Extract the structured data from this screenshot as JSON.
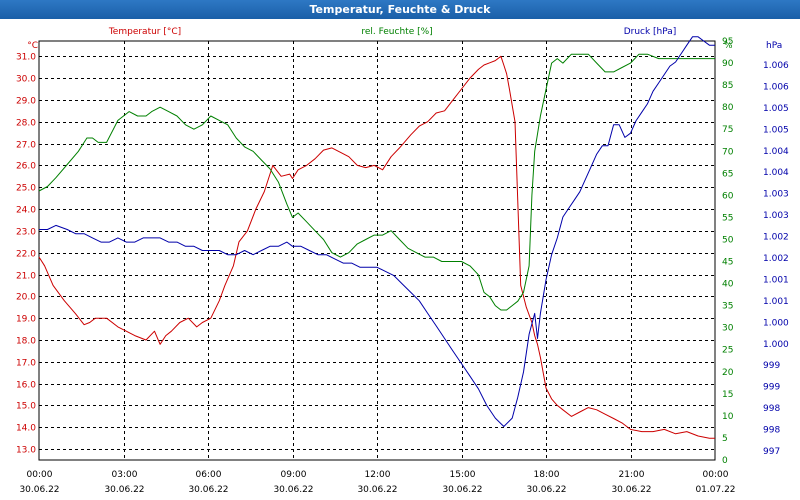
{
  "window": {
    "title": "Temperatur, Feuchte & Druck"
  },
  "colors": {
    "temperature": "#cc0000",
    "humidity": "#008000",
    "pressure": "#0000aa",
    "grid": "#000000",
    "frame": "#000000",
    "title_bar": "#1f66b0"
  },
  "chart_data": {
    "type": "line",
    "title": "Temperatur, Feuchte & Druck",
    "x_tick_labels": [
      {
        "time": "00:00",
        "date": "30.06.22"
      },
      {
        "time": "03:00",
        "date": "30.06.22"
      },
      {
        "time": "06:00",
        "date": "30.06.22"
      },
      {
        "time": "09:00",
        "date": "30.06.22"
      },
      {
        "time": "12:00",
        "date": "30.06.22"
      },
      {
        "time": "15:00",
        "date": "30.06.22"
      },
      {
        "time": "18:00",
        "date": "30.06.22"
      },
      {
        "time": "21:00",
        "date": "30.06.22"
      },
      {
        "time": "00:00",
        "date": "01.07.22"
      }
    ],
    "x_range_hours": [
      0,
      24
    ],
    "grid": true,
    "axes": {
      "temperature": {
        "label": "Temperatur [°C]",
        "unit": "°C",
        "range": [
          12.5,
          31.7
        ],
        "ticks": [
          "13.0",
          "14.0",
          "15.0",
          "16.0",
          "17.0",
          "18.0",
          "19.0",
          "20.0",
          "21.0",
          "22.0",
          "23.0",
          "24.0",
          "25.0",
          "26.0",
          "27.0",
          "28.0",
          "29.0",
          "30.0",
          "31.0"
        ]
      },
      "humidity": {
        "label": "rel. Feuchte [%]",
        "unit": "%",
        "range": [
          0,
          95
        ],
        "ticks": [
          "0",
          "5",
          "10",
          "15",
          "20",
          "25",
          "30",
          "35",
          "40",
          "45",
          "50",
          "55",
          "60",
          "65",
          "70",
          "75",
          "80",
          "85",
          "90",
          "95"
        ]
      },
      "pressure": {
        "label": "Druck [hPa]",
        "unit": "hPa",
        "range": [
          996.5,
          1006.5
        ],
        "ticks": [
          "997",
          "998",
          "998",
          "999",
          "999",
          "1.000",
          "1.000",
          "1.001",
          "1.001",
          "1.002",
          "1.002",
          "1.003",
          "1.003",
          "1.004",
          "1.004",
          "1.005",
          "1.005",
          "1.006",
          "1.006"
        ]
      }
    },
    "series": [
      {
        "name": "Temperatur [°C]",
        "axis": "temperature",
        "x": [
          0,
          0.2,
          0.5,
          0.9,
          1.3,
          1.6,
          1.8,
          2.0,
          2.4,
          2.8,
          3.1,
          3.4,
          3.8,
          4.1,
          4.3,
          4.5,
          4.7,
          5.0,
          5.3,
          5.6,
          5.8,
          6.1,
          6.4,
          6.6,
          6.9,
          7.1,
          7.4,
          7.7,
          8.0,
          8.3,
          8.6,
          8.9,
          9.0,
          9.2,
          9.5,
          9.8,
          10.1,
          10.4,
          10.7,
          11.0,
          11.3,
          11.6,
          11.9,
          12.2,
          12.5,
          12.8,
          13.2,
          13.5,
          13.8,
          14.1,
          14.4,
          14.7,
          15.0,
          15.3,
          15.6,
          15.8,
          16.0,
          16.2,
          16.4,
          16.5,
          16.6,
          16.7,
          16.9,
          17.1,
          17.3,
          17.5,
          17.6,
          17.7,
          17.8,
          17.9,
          18.0,
          18.2,
          18.4,
          18.6,
          18.9,
          19.2,
          19.5,
          19.8,
          20.1,
          20.4,
          20.7,
          21.0,
          21.4,
          21.8,
          22.2,
          22.6,
          23.0,
          23.4,
          23.8,
          24.0
        ],
        "values": [
          21.8,
          21.4,
          20.5,
          19.8,
          19.2,
          18.7,
          18.8,
          19.0,
          19.0,
          18.6,
          18.4,
          18.2,
          18.0,
          18.4,
          17.8,
          18.2,
          18.4,
          18.8,
          19.0,
          18.6,
          18.8,
          19.0,
          19.8,
          20.5,
          21.4,
          22.5,
          23.0,
          24.0,
          24.8,
          26.0,
          25.5,
          25.6,
          25.4,
          25.8,
          26.0,
          26.3,
          26.7,
          26.8,
          26.6,
          26.4,
          26.0,
          25.9,
          26.0,
          25.8,
          26.4,
          26.8,
          27.4,
          27.8,
          28.0,
          28.4,
          28.5,
          29.0,
          29.5,
          30.0,
          30.4,
          30.6,
          30.7,
          30.8,
          31.0,
          30.6,
          30.2,
          29.5,
          28.0,
          20.5,
          19.5,
          18.8,
          18.2,
          17.8,
          17.2,
          16.5,
          15.8,
          15.3,
          15.0,
          14.8,
          14.5,
          14.7,
          14.9,
          14.8,
          14.6,
          14.4,
          14.2,
          13.9,
          13.8,
          13.8,
          13.9,
          13.7,
          13.8,
          13.6,
          13.5,
          13.5
        ]
      },
      {
        "name": "rel. Feuchte [%]",
        "axis": "humidity",
        "x": [
          0,
          0.3,
          0.6,
          1.0,
          1.4,
          1.7,
          1.9,
          2.1,
          2.4,
          2.8,
          3.2,
          3.5,
          3.8,
          4.0,
          4.3,
          4.6,
          4.9,
          5.2,
          5.5,
          5.8,
          6.1,
          6.4,
          6.7,
          7.0,
          7.3,
          7.6,
          7.9,
          8.2,
          8.5,
          8.8,
          9.0,
          9.2,
          9.5,
          9.8,
          10.1,
          10.4,
          10.7,
          11.0,
          11.3,
          11.6,
          11.9,
          12.2,
          12.5,
          12.8,
          13.1,
          13.4,
          13.7,
          14.0,
          14.3,
          14.6,
          15.0,
          15.3,
          15.6,
          15.8,
          16.0,
          16.2,
          16.4,
          16.6,
          16.8,
          17.0,
          17.2,
          17.4,
          17.5,
          17.6,
          17.8,
          18.0,
          18.2,
          18.4,
          18.6,
          18.9,
          19.2,
          19.5,
          19.8,
          20.1,
          20.4,
          20.7,
          21.0,
          21.3,
          21.6,
          22.0,
          22.4,
          22.8,
          23.2,
          23.6,
          24.0
        ],
        "values": [
          61,
          62,
          64,
          67,
          70,
          73,
          73,
          72,
          72,
          77,
          79,
          78,
          78,
          79,
          80,
          79,
          78,
          76,
          75,
          76,
          78,
          77,
          76,
          73,
          71,
          70,
          68,
          66,
          63,
          58,
          55,
          56,
          54,
          52,
          50,
          47,
          46,
          47,
          49,
          50,
          51,
          51,
          52,
          50,
          48,
          47,
          46,
          46,
          45,
          45,
          45,
          44,
          42,
          38,
          37,
          35,
          34,
          34,
          35,
          36,
          38,
          44,
          60,
          70,
          78,
          84,
          90,
          91,
          90,
          92,
          92,
          92,
          90,
          88,
          88,
          89,
          90,
          92,
          92,
          91,
          91,
          91,
          91,
          91,
          91
        ]
      },
      {
        "name": "Druck [hPa]",
        "axis": "pressure",
        "x": [
          0,
          0.3,
          0.6,
          1.0,
          1.3,
          1.6,
          1.9,
          2.2,
          2.5,
          2.8,
          3.1,
          3.4,
          3.7,
          4.0,
          4.3,
          4.6,
          4.9,
          5.2,
          5.5,
          5.8,
          6.1,
          6.4,
          6.7,
          7.0,
          7.3,
          7.6,
          7.9,
          8.2,
          8.5,
          8.8,
          9.0,
          9.3,
          9.6,
          9.9,
          10.2,
          10.5,
          10.8,
          11.1,
          11.4,
          11.7,
          12.0,
          12.3,
          12.6,
          12.9,
          13.2,
          13.5,
          13.8,
          14.1,
          14.4,
          14.7,
          15.0,
          15.3,
          15.6,
          15.9,
          16.2,
          16.5,
          16.8,
          17.0,
          17.2,
          17.4,
          17.6,
          17.7,
          17.8,
          18.0,
          18.2,
          18.4,
          18.6,
          18.8,
          19.0,
          19.2,
          19.4,
          19.6,
          19.8,
          20.0,
          20.2,
          20.4,
          20.6,
          20.8,
          21.0,
          21.2,
          21.4,
          21.6,
          21.8,
          22.0,
          22.2,
          22.4,
          22.6,
          22.8,
          23.0,
          23.2,
          23.4,
          23.6,
          23.8,
          24.0
        ],
        "values": [
          1002.0,
          1002.0,
          1002.1,
          1002.0,
          1001.9,
          1001.9,
          1001.8,
          1001.7,
          1001.7,
          1001.8,
          1001.7,
          1001.7,
          1001.8,
          1001.8,
          1001.8,
          1001.7,
          1001.7,
          1001.6,
          1001.6,
          1001.5,
          1001.5,
          1001.5,
          1001.4,
          1001.4,
          1001.5,
          1001.4,
          1001.5,
          1001.6,
          1001.6,
          1001.7,
          1001.6,
          1001.6,
          1001.5,
          1001.4,
          1001.4,
          1001.3,
          1001.2,
          1001.2,
          1001.1,
          1001.1,
          1001.1,
          1001.0,
          1000.9,
          1000.7,
          1000.5,
          1000.3,
          1000.0,
          999.7,
          999.4,
          999.1,
          998.8,
          998.5,
          998.2,
          997.8,
          997.5,
          997.3,
          997.5,
          998.0,
          998.6,
          999.5,
          1000.0,
          999.4,
          1000.0,
          1000.8,
          1001.4,
          1001.8,
          1002.3,
          1002.5,
          1002.7,
          1002.9,
          1003.2,
          1003.5,
          1003.8,
          1004.0,
          1004.0,
          1004.5,
          1004.5,
          1004.2,
          1004.3,
          1004.6,
          1004.8,
          1005.0,
          1005.3,
          1005.5,
          1005.7,
          1005.9,
          1006.0,
          1006.2,
          1006.4,
          1006.6,
          1006.6,
          1006.5,
          1006.4,
          1006.4
        ]
      }
    ]
  }
}
